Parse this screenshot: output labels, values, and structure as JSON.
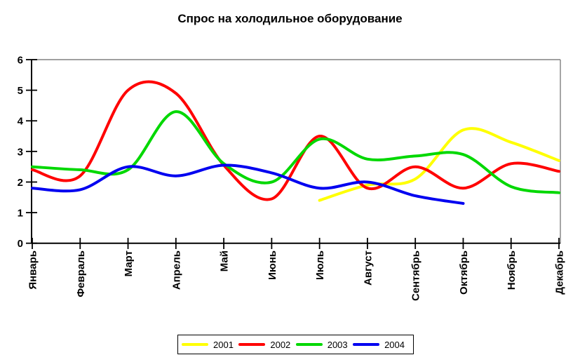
{
  "title": "Спрос на холодильное оборудование",
  "chart_data": {
    "type": "line",
    "title": "Спрос на холодильное оборудование",
    "smooth": true,
    "categories": [
      "Январь",
      "Февраль",
      "Март",
      "Апрель",
      "Май",
      "Июнь",
      "Июль",
      "Август",
      "Сентябрь",
      "Октябрь",
      "Ноябрь",
      "Декабрь"
    ],
    "x_tick_label_rotation": -90,
    "ylim": [
      0,
      6
    ],
    "y_ticks": [
      "0",
      "1",
      "2",
      "3",
      "4",
      "5",
      "6"
    ],
    "grid": "top border only",
    "legend_position": "bottom",
    "axis_color": "#000000",
    "border_color": "#808080",
    "background_color": "#ffffff",
    "series": [
      {
        "name": "2001",
        "color": "#ffff00",
        "values": [
          null,
          null,
          null,
          null,
          null,
          null,
          1.4,
          1.9,
          2.1,
          3.7,
          3.3,
          2.7
        ]
      },
      {
        "name": "2002",
        "color": "#ff0000",
        "values": [
          2.4,
          2.2,
          5.0,
          4.9,
          2.55,
          1.45,
          3.5,
          1.8,
          2.5,
          1.8,
          2.6,
          2.35
        ]
      },
      {
        "name": "2003",
        "color": "#00d800",
        "values": [
          2.5,
          2.4,
          2.4,
          4.3,
          2.6,
          2.0,
          3.4,
          2.75,
          2.85,
          2.9,
          1.85,
          1.65
        ]
      },
      {
        "name": "2004",
        "color": "#0000f0",
        "values": [
          1.8,
          1.75,
          2.5,
          2.2,
          2.55,
          2.3,
          1.8,
          2.0,
          1.55,
          1.3,
          null,
          null
        ]
      }
    ]
  }
}
